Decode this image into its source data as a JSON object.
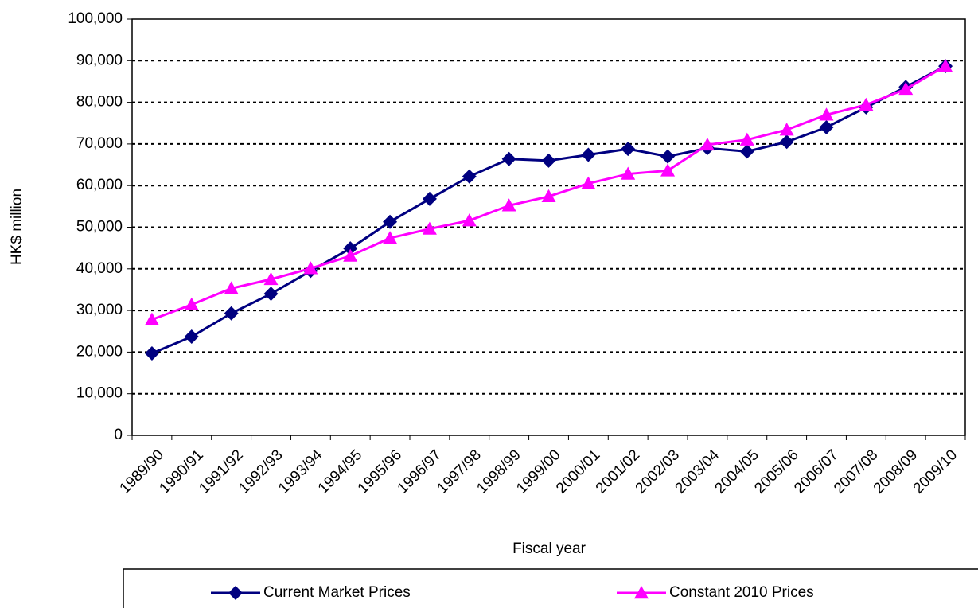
{
  "chart_data": {
    "type": "line",
    "x_label": "Fiscal year",
    "y_label": "HK$ million",
    "categories": [
      "1989/90",
      "1990/91",
      "1991/92",
      "1992/93",
      "1993/94",
      "1994/95",
      "1995/96",
      "1996/97",
      "1997/98",
      "1998/99",
      "1999/00",
      "2000/01",
      "2001/02",
      "2002/03",
      "2003/04",
      "2004/05",
      "2005/06",
      "2006/07",
      "2007/08",
      "2008/09",
      "2009/10"
    ],
    "series": [
      {
        "name": "Current Market Prices",
        "color": "#000080",
        "marker": "diamond",
        "values": [
          19700,
          23700,
          29300,
          34000,
          39500,
          44900,
          51300,
          56800,
          62200,
          66400,
          66000,
          67400,
          68800,
          67000,
          69000,
          68200,
          70500,
          74000,
          78800,
          83700,
          88700
        ]
      },
      {
        "name": "Constant 2010 Prices",
        "color": "#ff00ff",
        "marker": "triangle",
        "values": [
          27800,
          31400,
          35300,
          37500,
          40100,
          43100,
          47400,
          49600,
          51600,
          55200,
          57400,
          60500,
          62800,
          63600,
          69800,
          71000,
          73400,
          77000,
          79400,
          83200,
          88700
        ]
      }
    ],
    "ylim": [
      0,
      100000
    ],
    "yticks": [
      0,
      {
        "value": 10000,
        "label": "10,000"
      },
      {
        "value": 20000,
        "label": "20,000"
      },
      {
        "value": 30000,
        "label": "30,000"
      },
      {
        "value": 40000,
        "label": "40,000"
      },
      {
        "value": 50000,
        "label": "50,000"
      },
      {
        "value": 60000,
        "label": "60,000"
      },
      {
        "value": 70000,
        "label": "70,000"
      },
      {
        "value": 80000,
        "label": "80,000"
      },
      {
        "value": 90000,
        "label": "90,000"
      },
      {
        "value": 100000,
        "label": "100,000"
      }
    ],
    "grid": true,
    "legend": "bottom"
  }
}
